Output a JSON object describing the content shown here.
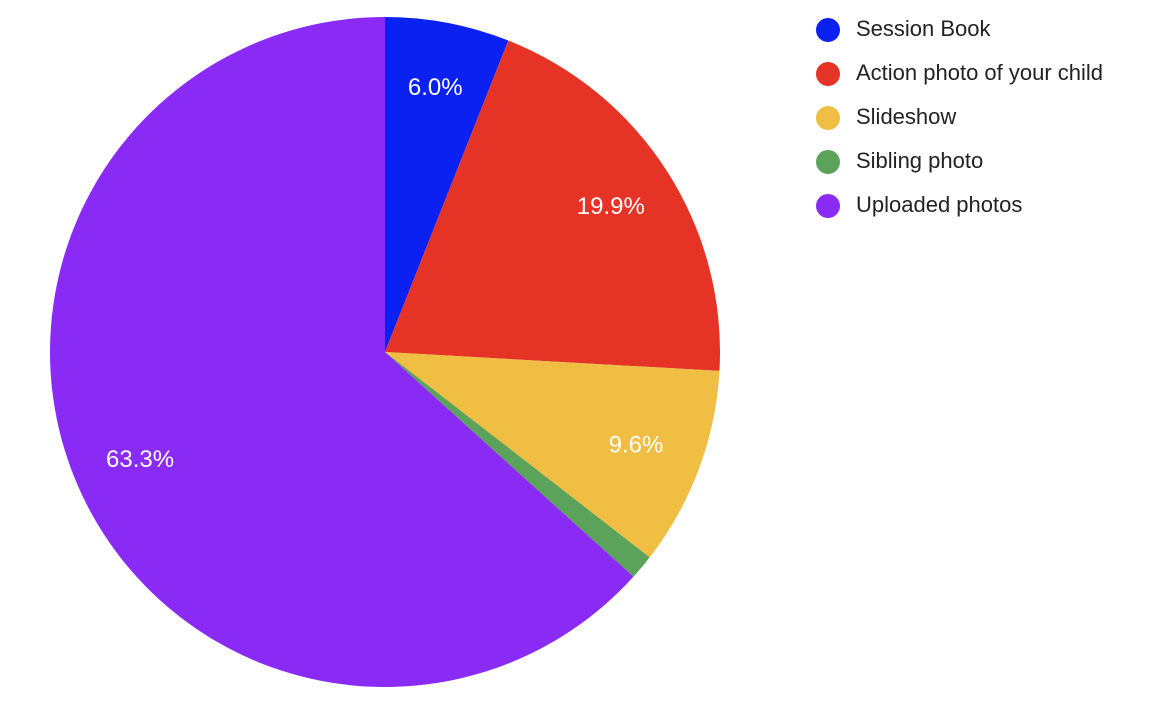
{
  "chart_data": {
    "type": "pie",
    "categories": [
      "Session Book",
      "Action photo of your child",
      "Slideshow",
      "Sibling photo",
      "Uploaded photos"
    ],
    "values": [
      6.0,
      19.9,
      9.6,
      1.2,
      63.3
    ],
    "value_labels": [
      "6.0%",
      "19.9%",
      "9.6%",
      null,
      "63.3%"
    ],
    "colors": [
      "#0a21f2",
      "#e53426",
      "#f0be42",
      "#5ba35a",
      "#8a2af5"
    ],
    "legend": "right"
  }
}
